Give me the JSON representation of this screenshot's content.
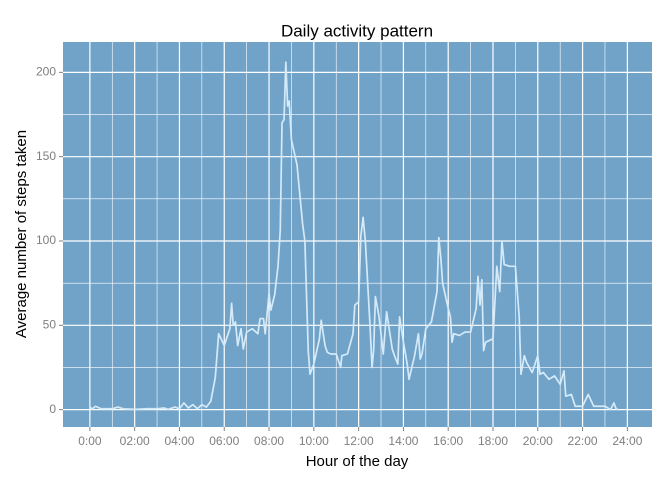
{
  "chart_data": {
    "type": "line",
    "title": "Daily activity pattern",
    "x_label": "Hour of the day",
    "y_label": "Average number of steps taken",
    "background": "#71a3c9",
    "grid": true,
    "grid_color": "#ffffff",
    "xlim": [
      -1.2,
      25.1
    ],
    "ylim": [
      -10.3,
      218
    ],
    "xticks": [
      {
        "value": 0,
        "label": "0:00"
      },
      {
        "value": 2,
        "label": "02:00"
      },
      {
        "value": 4,
        "label": "04:00"
      },
      {
        "value": 6,
        "label": "06:00"
      },
      {
        "value": 8,
        "label": "08:00"
      },
      {
        "value": 10,
        "label": "10:00"
      },
      {
        "value": 12,
        "label": "12:00"
      },
      {
        "value": 14,
        "label": "14:00"
      },
      {
        "value": 16,
        "label": "16:00"
      },
      {
        "value": 18,
        "label": "18:00"
      },
      {
        "value": 20,
        "label": "20:00"
      },
      {
        "value": 22,
        "label": "22:00"
      },
      {
        "value": 24,
        "label": "24:00"
      }
    ],
    "yticks": [
      0,
      50,
      100,
      150,
      200
    ],
    "x": [
      0,
      0.1,
      0.25,
      0.5,
      1,
      1.25,
      1.5,
      2,
      2.5,
      3,
      3.3,
      3.5,
      3.8,
      4,
      4.2,
      4.4,
      4.6,
      4.8,
      5,
      5.2,
      5.4,
      5.6,
      5.75,
      6,
      6.25,
      6.33,
      6.4,
      6.5,
      6.6,
      6.75,
      6.85,
      7,
      7.25,
      7.5,
      7.6,
      7.75,
      7.83,
      8,
      8.08,
      8.25,
      8.4,
      8.5,
      8.58,
      8.67,
      8.75,
      8.83,
      8.9,
      9,
      9.25,
      9.5,
      9.6,
      9.75,
      9.83,
      10,
      10.25,
      10.33,
      10.5,
      10.6,
      10.75,
      11,
      11.2,
      11.25,
      11.5,
      11.75,
      11.83,
      12,
      12.1,
      12.2,
      12.3,
      12.5,
      12.6,
      12.67,
      12.75,
      12.9,
      13,
      13.1,
      13.25,
      13.5,
      13.6,
      13.75,
      13.83,
      14,
      14.17,
      14.25,
      14.5,
      14.67,
      14.75,
      14.83,
      15,
      15.25,
      15.5,
      15.58,
      15.67,
      15.75,
      16,
      16.1,
      16.17,
      16.25,
      16.5,
      16.75,
      17,
      17.25,
      17.33,
      17.42,
      17.5,
      17.58,
      17.67,
      18,
      18.17,
      18.3,
      18.4,
      18.5,
      18.75,
      19,
      19.17,
      19.25,
      19.4,
      19.5,
      19.75,
      20,
      20.1,
      20.25,
      20.5,
      20.75,
      21,
      21.17,
      21.25,
      21.5,
      21.67,
      22,
      22.25,
      22.5,
      22.75,
      23,
      23.25,
      23.4,
      23.5,
      23.58
    ],
    "series": [
      {
        "color": "#d4eaf9",
        "values": [
          1.7,
          0.3,
          2,
          0.5,
          0.5,
          1.5,
          0.5,
          0.2,
          0.5,
          0.5,
          1,
          0.2,
          1.5,
          0.5,
          4,
          1,
          3,
          0.5,
          3,
          1.5,
          5,
          19,
          45,
          38,
          48,
          63,
          50,
          52,
          38,
          48,
          36,
          46,
          48,
          45,
          54,
          54,
          45,
          69,
          59,
          68,
          85,
          106,
          170,
          172,
          206,
          180,
          183,
          160,
          145,
          110,
          100,
          35,
          21,
          27,
          42,
          53,
          38,
          34,
          33,
          33,
          25,
          32,
          33,
          45,
          62,
          64,
          103,
          114,
          100,
          52,
          25,
          35,
          67,
          56,
          45,
          33,
          58,
          36,
          32,
          27,
          55,
          40,
          27,
          18,
          32,
          45,
          30,
          33,
          48,
          52,
          70,
          102,
          90,
          75,
          60,
          55,
          40,
          45,
          44,
          46,
          46,
          60,
          79,
          62,
          77,
          35,
          40,
          42,
          85,
          70,
          100,
          86,
          85,
          85,
          55,
          21,
          32,
          28,
          22,
          32,
          21,
          22,
          18,
          20,
          15,
          23,
          8,
          9,
          2,
          2,
          9,
          2,
          2,
          2,
          0,
          4,
          0.5,
          0
        ]
      }
    ]
  }
}
